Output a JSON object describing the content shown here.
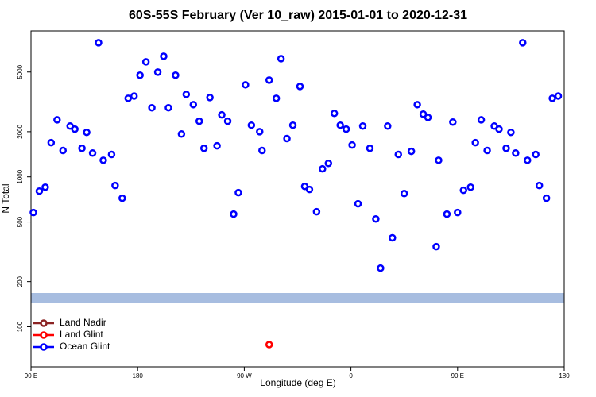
{
  "chart_data": {
    "type": "scatter",
    "title": "60S-55S February (Ver 10_raw)   2015-01-01 to 2020-12-31",
    "x_label": "Longitude (deg E)",
    "y_label": "N Total",
    "xlim": [
      90,
      540
    ],
    "ylim": [
      54,
      9400
    ],
    "log_y": true,
    "xticks": [
      {
        "value": 90,
        "label": "90 E"
      },
      180,
      {
        "value": 270,
        "label": "90 W"
      },
      {
        "value": 360,
        "label": "0"
      },
      {
        "value": 450,
        "label": "90 E"
      },
      {
        "value": 540,
        "label": "180"
      }
    ],
    "yticks": [
      100,
      200,
      500,
      1000,
      2000,
      5000
    ],
    "legend_position": "lower left",
    "series": [
      {
        "name": "Land Nadir",
        "color": "#8b2323",
        "x": [],
        "values": []
      },
      {
        "name": "Land Glint",
        "color": "#ff0000",
        "x": [
          291
        ],
        "values": [
          76
        ]
      },
      {
        "name": "Ocean Glint",
        "color": "#0000ff",
        "x": [
          92,
          97,
          102,
          107,
          112,
          117,
          123,
          127,
          133,
          137,
          142,
          147,
          151,
          158,
          161,
          167,
          172,
          177,
          182,
          187,
          192,
          197,
          202,
          206,
          212,
          217,
          221,
          227,
          232,
          236,
          241,
          247,
          251,
          256,
          261,
          265,
          271,
          276,
          283,
          285,
          291,
          297,
          301,
          306,
          311,
          317,
          321,
          325,
          331,
          336,
          341,
          346,
          351,
          356,
          361,
          366,
          370,
          376,
          381,
          385,
          391,
          395,
          400,
          405,
          411,
          416,
          421,
          425,
          432,
          434,
          441,
          446,
          450,
          455,
          461,
          465,
          470,
          475,
          481,
          485,
          491,
          495,
          499,
          505,
          509,
          516,
          519,
          525,
          530,
          535
        ],
        "values": [
          578,
          803,
          853,
          1690,
          2400,
          1500,
          2180,
          2080,
          1550,
          1980,
          1440,
          7840,
          1290,
          1410,
          875,
          720,
          3340,
          3460,
          4760,
          5850,
          2890,
          4990,
          6370,
          2890,
          4760,
          1930,
          3550,
          3030,
          2350,
          1550,
          3380,
          1610,
          2590,
          2350,
          564,
          784,
          4110,
          2210,
          2000,
          1500,
          4420,
          3340,
          6140,
          1800,
          2210,
          4010,
          864,
          823,
          585,
          1130,
          1230,
          2650,
          2210,
          2080,
          1630,
          661,
          2180,
          1550,
          524,
          246,
          2180,
          392,
          1410,
          774,
          1480,
          3030,
          2620,
          2490,
          342,
          1290,
          564,
          2320,
          578,
          813,
          853,
          1690,
          2400,
          1500,
          2180,
          2080,
          1550,
          1980,
          1440,
          7840,
          1290,
          1410,
          875,
          720,
          3340,
          3460
        ]
      }
    ]
  }
}
